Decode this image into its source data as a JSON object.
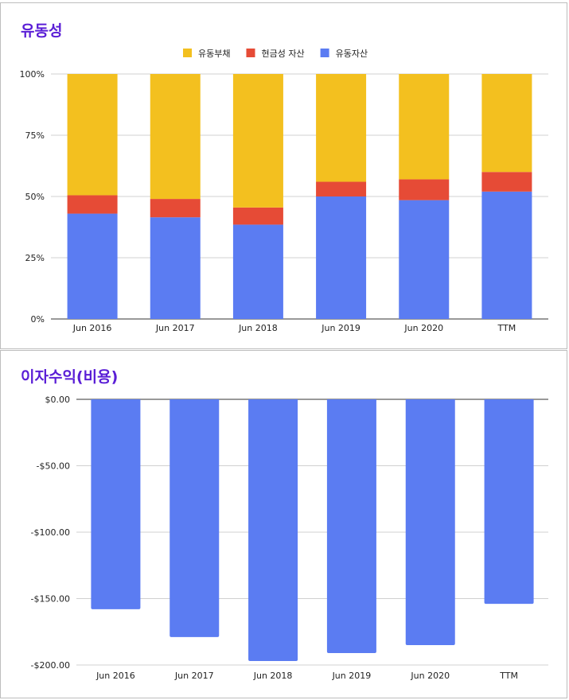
{
  "chart_data": [
    {
      "type": "bar",
      "stacked": "percent",
      "title": "유동성",
      "categories": [
        "Jun 2016",
        "Jun 2017",
        "Jun 2018",
        "Jun 2019",
        "Jun 2020",
        "TTM"
      ],
      "series": [
        {
          "name": "유동자산",
          "color": "#5b7cf2",
          "values": [
            43,
            41.5,
            38.5,
            50,
            48.5,
            52
          ]
        },
        {
          "name": "현금성 자산",
          "color": "#e64b36",
          "values": [
            7.5,
            7.5,
            7,
            6,
            8.5,
            8
          ]
        },
        {
          "name": "유동부채",
          "color": "#f3c01f",
          "values": [
            49.5,
            51,
            54.5,
            44,
            43,
            40
          ]
        }
      ],
      "legend_order": [
        "유동부채",
        "현금성 자산",
        "유동자산"
      ],
      "legend_position": "top",
      "yticks": [
        "0%",
        "25%",
        "50%",
        "75%",
        "100%"
      ],
      "ylim": [
        0,
        100
      ],
      "grid": true
    },
    {
      "type": "bar",
      "title": "이자수익(비용)",
      "categories": [
        "Jun 2016",
        "Jun 2017",
        "Jun 2018",
        "Jun 2019",
        "Jun 2020",
        "TTM"
      ],
      "series": [
        {
          "name": "이자수익(비용)",
          "color": "#5b7cf2",
          "values": [
            -158,
            -179,
            -197,
            -191,
            -185,
            -154
          ]
        }
      ],
      "yticks": [
        "$0.00",
        "-$50.00",
        "-$100.00",
        "-$150.00",
        "-$200.00"
      ],
      "ylim": [
        -200,
        0
      ],
      "grid": true
    }
  ]
}
